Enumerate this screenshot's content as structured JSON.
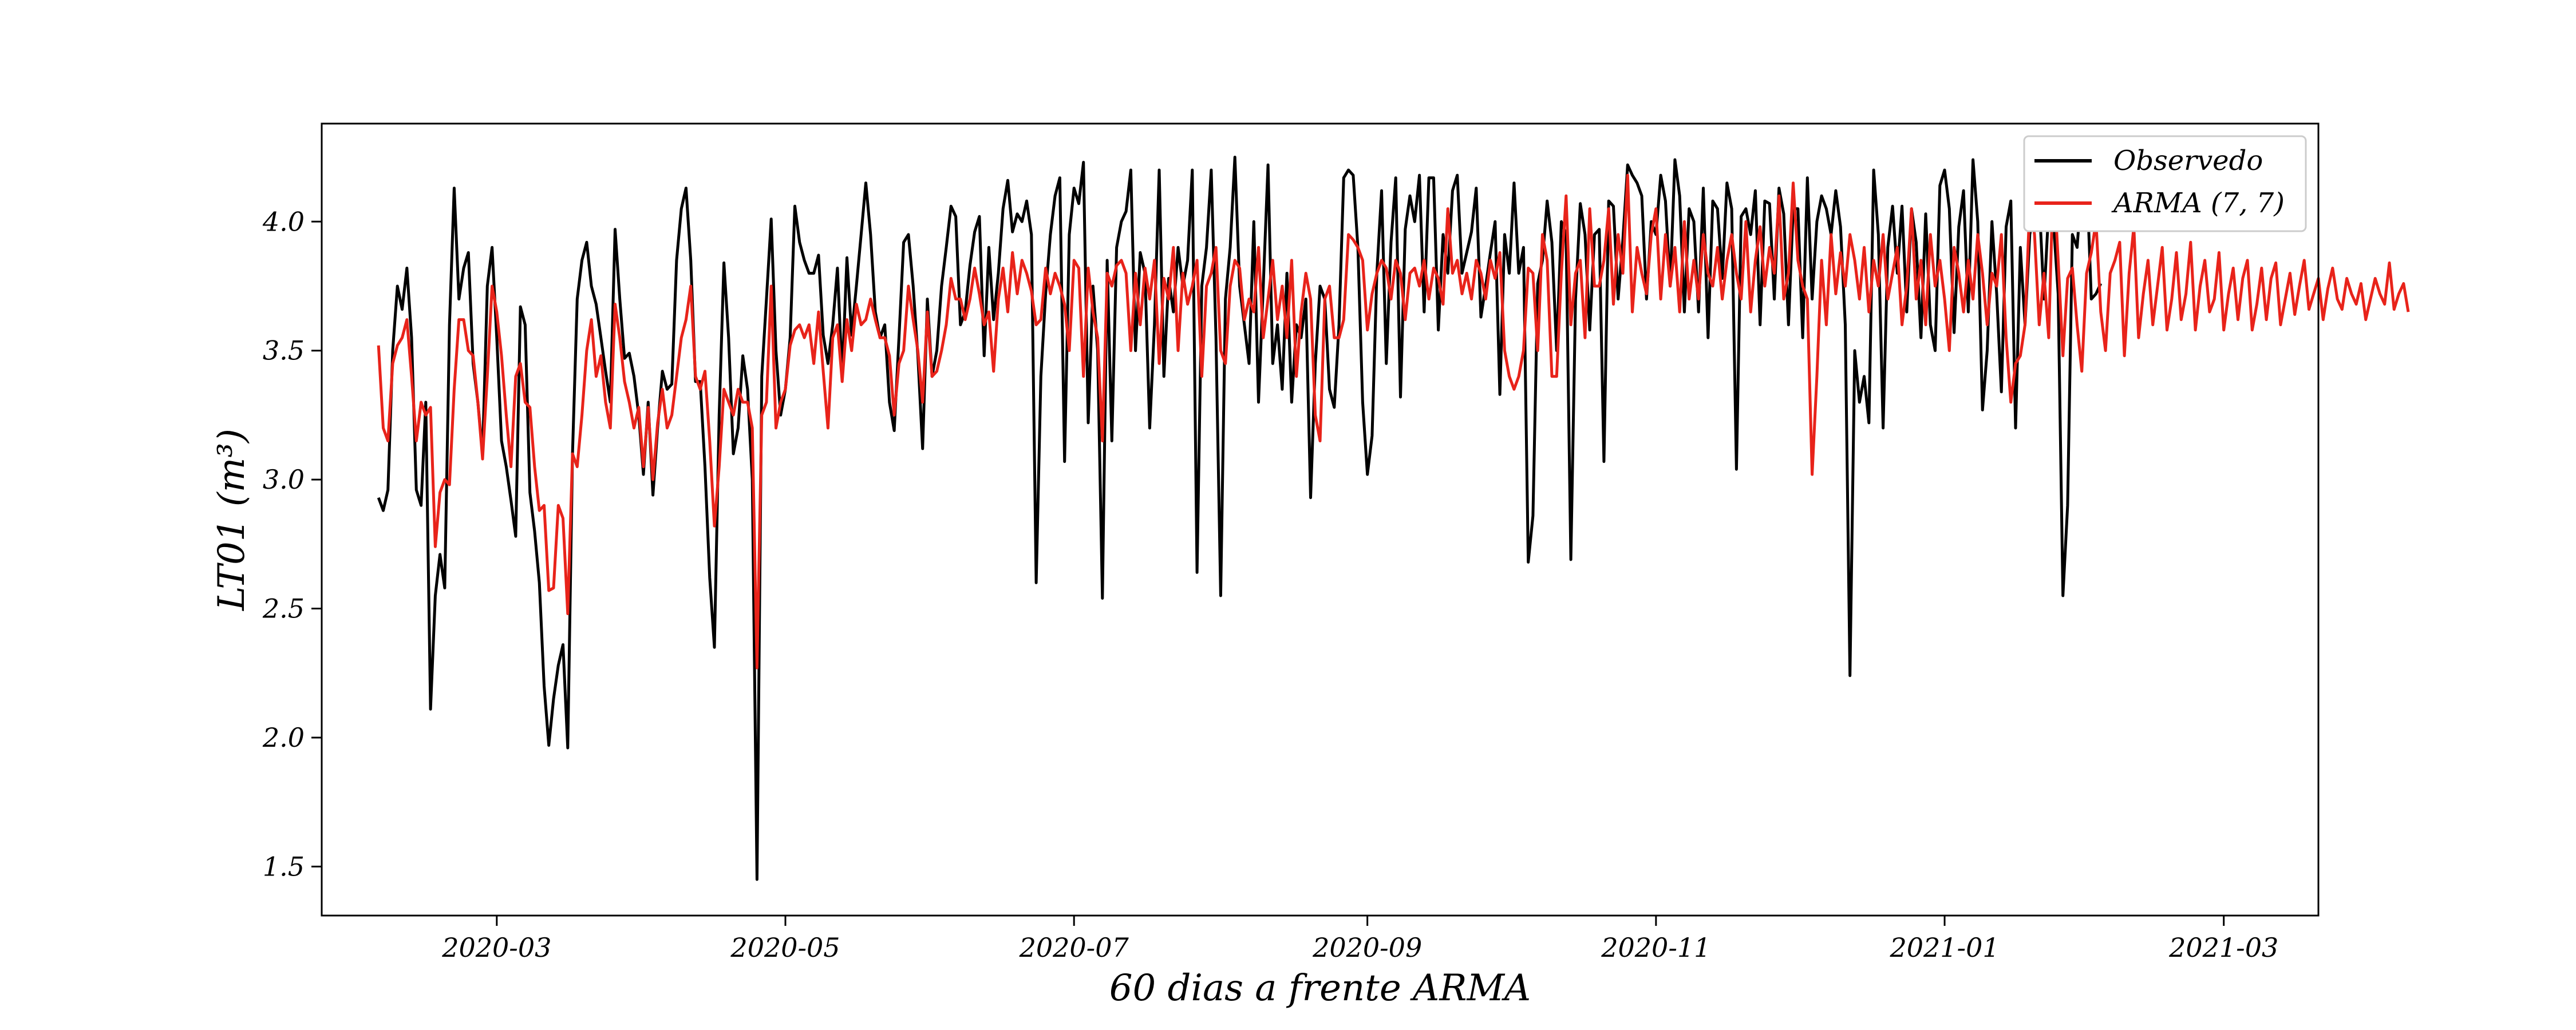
{
  "chart_data": {
    "type": "line",
    "xlabel": "60 dias a frente ARMA",
    "ylabel": "LT01 (m³)",
    "x_ticks": [
      "2020-03",
      "2020-05",
      "2020-07",
      "2020-09",
      "2020-11",
      "2021-01",
      "2021-03"
    ],
    "y_ticks": [
      "1.5",
      "2.0",
      "2.5",
      "3.0",
      "3.5",
      "4.0"
    ],
    "xlim": [
      "2020-01-24",
      "2021-03-21"
    ],
    "ylim": [
      1.31,
      4.38
    ],
    "grid": false,
    "legend_position": "top-right",
    "series": [
      {
        "name": "Observedo",
        "color": "#000000",
        "x_start": "2020-02-05",
        "x_step_days": 1,
        "values": [
          2.93,
          2.88,
          2.96,
          3.5,
          3.75,
          3.66,
          3.82,
          3.55,
          2.96,
          2.9,
          3.3,
          2.11,
          2.55,
          2.71,
          2.58,
          3.6,
          4.13,
          3.7,
          3.82,
          3.88,
          3.45,
          3.3,
          3.1,
          3.75,
          3.9,
          3.55,
          3.15,
          3.05,
          2.92,
          2.78,
          3.67,
          3.6,
          2.95,
          2.8,
          2.6,
          2.2,
          1.97,
          2.15,
          2.28,
          2.36,
          1.96,
          3.1,
          3.7,
          3.85,
          3.92,
          3.75,
          3.68,
          3.55,
          3.42,
          3.3,
          3.97,
          3.7,
          3.47,
          3.49,
          3.4,
          3.25,
          3.02,
          3.3,
          2.94,
          3.2,
          3.42,
          3.35,
          3.37,
          3.85,
          4.05,
          4.13,
          3.85,
          3.38,
          3.38,
          3.05,
          2.62,
          2.35,
          3.25,
          3.84,
          3.55,
          3.1,
          3.2,
          3.48,
          3.35,
          3.0,
          1.45,
          3.4,
          3.7,
          4.01,
          3.5,
          3.25,
          3.35,
          3.55,
          4.06,
          3.92,
          3.85,
          3.8,
          3.8,
          3.87,
          3.56,
          3.45,
          3.6,
          3.82,
          3.4,
          3.86,
          3.56,
          3.75,
          3.95,
          4.15,
          3.95,
          3.65,
          3.55,
          3.6,
          3.3,
          3.19,
          3.55,
          3.92,
          3.95,
          3.75,
          3.48,
          3.12,
          3.7,
          3.4,
          3.5,
          3.75,
          3.9,
          4.06,
          4.02,
          3.6,
          3.65,
          3.83,
          3.96,
          4.02,
          3.48,
          3.9,
          3.62,
          3.8,
          4.05,
          4.16,
          3.96,
          4.03,
          4.0,
          4.08,
          3.95,
          2.6,
          3.4,
          3.72,
          3.95,
          4.1,
          4.17,
          3.07,
          3.95,
          4.13,
          4.07,
          4.23,
          3.22,
          3.75,
          3.5,
          2.54,
          3.85,
          3.15,
          3.9,
          4.0,
          4.04,
          4.2,
          3.5,
          3.88,
          3.8,
          3.2,
          3.6,
          4.2,
          3.4,
          3.78,
          3.65,
          3.9,
          3.75,
          3.85,
          4.2,
          2.64,
          3.75,
          3.9,
          4.2,
          3.55,
          2.55,
          3.7,
          3.9,
          4.25,
          3.75,
          3.6,
          3.45,
          4.0,
          3.3,
          3.75,
          4.22,
          3.45,
          3.6,
          3.35,
          3.8,
          3.3,
          3.6,
          3.55,
          3.7,
          2.93,
          3.45,
          3.75,
          3.7,
          3.35,
          3.28,
          3.6,
          4.17,
          4.2,
          4.18,
          3.9,
          3.3,
          3.02,
          3.17,
          3.8,
          4.12,
          3.45,
          3.92,
          4.17,
          3.32,
          3.97,
          4.1,
          4.0,
          4.18,
          3.65,
          4.17,
          4.17,
          3.58,
          3.95,
          3.8,
          4.12,
          4.18,
          3.8,
          3.88,
          3.96,
          4.13,
          3.63,
          3.75,
          3.88,
          4.0,
          3.33,
          3.95,
          3.8,
          4.15,
          3.8,
          3.9,
          2.68,
          2.86,
          3.76,
          3.85,
          4.08,
          3.92,
          3.5,
          4.0,
          3.95,
          2.69,
          3.7,
          4.07,
          3.95,
          3.58,
          3.95,
          3.97,
          3.07,
          4.08,
          4.06,
          3.7,
          3.93,
          4.22,
          4.18,
          4.15,
          4.1,
          3.7,
          4.0,
          3.95,
          4.18,
          4.08,
          3.75,
          4.24,
          4.1,
          3.65,
          4.05,
          4.0,
          3.65,
          4.13,
          3.55,
          4.08,
          4.05,
          3.78,
          4.15,
          4.05,
          3.04,
          4.02,
          4.05,
          3.95,
          4.12,
          3.6,
          4.08,
          4.07,
          3.7,
          4.13,
          4.03,
          3.6,
          4.05,
          4.05,
          3.55,
          4.17,
          3.7,
          4.0,
          4.1,
          4.05,
          3.95,
          4.12,
          3.98,
          3.6,
          2.24,
          3.5,
          3.3,
          3.4,
          3.22,
          4.2,
          3.95,
          3.2,
          3.9,
          4.06,
          3.8,
          4.06,
          3.65,
          4.05,
          3.92,
          3.55,
          4.03,
          3.6,
          3.5,
          4.14,
          4.2,
          4.05,
          3.57,
          3.98,
          4.12,
          3.65,
          4.24,
          4.0,
          3.27,
          3.5,
          4.0,
          3.72,
          3.34,
          3.98,
          4.08,
          3.2,
          3.9,
          3.6,
          3.95,
          4.05,
          4.08,
          3.7,
          4.05,
          4.0,
          3.72,
          2.55,
          2.9,
          3.95,
          3.9,
          4.15,
          4.19,
          3.7,
          3.72,
          3.76
        ]
      },
      {
        "name": "ARMA (7, 7)",
        "color": "#e8231a",
        "x_start": "2020-02-05",
        "x_step_days": 1,
        "values": [
          3.52,
          3.2,
          3.15,
          3.45,
          3.52,
          3.55,
          3.62,
          3.4,
          3.15,
          3.3,
          3.25,
          3.28,
          2.74,
          2.95,
          3.0,
          2.98,
          3.35,
          3.62,
          3.62,
          3.5,
          3.48,
          3.3,
          3.08,
          3.4,
          3.75,
          3.65,
          3.48,
          3.25,
          3.05,
          3.4,
          3.45,
          3.3,
          3.28,
          3.05,
          2.88,
          2.9,
          2.57,
          2.58,
          2.9,
          2.85,
          2.48,
          3.1,
          3.05,
          3.25,
          3.5,
          3.62,
          3.4,
          3.48,
          3.3,
          3.2,
          3.68,
          3.55,
          3.38,
          3.3,
          3.2,
          3.28,
          3.05,
          3.28,
          3.0,
          3.22,
          3.35,
          3.2,
          3.25,
          3.4,
          3.55,
          3.62,
          3.75,
          3.4,
          3.35,
          3.42,
          3.15,
          2.82,
          3.05,
          3.35,
          3.3,
          3.25,
          3.35,
          3.3,
          3.3,
          3.2,
          2.27,
          3.25,
          3.3,
          3.75,
          3.2,
          3.3,
          3.35,
          3.52,
          3.58,
          3.6,
          3.55,
          3.6,
          3.45,
          3.65,
          3.42,
          3.2,
          3.55,
          3.6,
          3.38,
          3.62,
          3.5,
          3.68,
          3.6,
          3.62,
          3.7,
          3.62,
          3.55,
          3.55,
          3.48,
          3.25,
          3.45,
          3.5,
          3.75,
          3.62,
          3.5,
          3.3,
          3.65,
          3.4,
          3.42,
          3.5,
          3.6,
          3.78,
          3.7,
          3.7,
          3.62,
          3.7,
          3.82,
          3.72,
          3.6,
          3.65,
          3.42,
          3.7,
          3.82,
          3.65,
          3.88,
          3.72,
          3.85,
          3.8,
          3.73,
          3.6,
          3.62,
          3.82,
          3.72,
          3.8,
          3.75,
          3.68,
          3.5,
          3.85,
          3.82,
          3.4,
          3.82,
          3.65,
          3.55,
          3.15,
          3.8,
          3.75,
          3.83,
          3.85,
          3.8,
          3.5,
          3.8,
          3.6,
          3.82,
          3.7,
          3.85,
          3.45,
          3.78,
          3.7,
          3.9,
          3.5,
          3.8,
          3.68,
          3.75,
          3.85,
          3.4,
          3.75,
          3.8,
          3.9,
          3.5,
          3.45,
          3.75,
          3.85,
          3.82,
          3.62,
          3.7,
          3.65,
          3.9,
          3.55,
          3.7,
          3.85,
          3.62,
          3.75,
          3.55,
          3.85,
          3.4,
          3.65,
          3.8,
          3.7,
          3.25,
          3.15,
          3.7,
          3.75,
          3.55,
          3.55,
          3.62,
          3.95,
          3.93,
          3.9,
          3.85,
          3.58,
          3.72,
          3.8,
          3.85,
          3.82,
          3.7,
          3.85,
          3.8,
          3.62,
          3.8,
          3.82,
          3.75,
          3.85,
          3.7,
          3.82,
          3.78,
          3.68,
          4.05,
          3.8,
          3.85,
          3.72,
          3.8,
          3.7,
          3.85,
          3.8,
          3.7,
          3.85,
          3.78,
          3.88,
          3.5,
          3.4,
          3.35,
          3.4,
          3.5,
          3.82,
          3.8,
          3.5,
          3.95,
          3.85,
          3.4,
          3.4,
          3.8,
          4.1,
          3.6,
          3.8,
          3.85,
          3.55,
          4.05,
          3.75,
          3.75,
          3.85,
          4.05,
          3.68,
          3.95,
          3.8,
          4.18,
          3.65,
          3.9,
          3.8,
          3.72,
          3.95,
          4.05,
          3.7,
          3.95,
          3.75,
          3.9,
          3.65,
          4.0,
          3.7,
          3.85,
          3.7,
          3.95,
          3.8,
          3.75,
          3.9,
          3.7,
          3.85,
          3.95,
          3.8,
          3.7,
          4.0,
          3.65,
          3.85,
          3.98,
          3.75,
          3.9,
          3.8,
          4.1,
          3.7,
          3.8,
          4.15,
          3.85,
          3.75,
          3.7,
          3.02,
          3.4,
          3.85,
          3.6,
          3.95,
          3.72,
          3.88,
          3.75,
          3.95,
          3.85,
          3.7,
          3.9,
          3.65,
          3.85,
          3.75,
          3.95,
          3.7,
          3.8,
          3.9,
          3.6,
          3.75,
          4.05,
          3.7,
          3.85,
          3.6,
          3.95,
          3.75,
          3.85,
          3.7,
          3.5,
          3.9,
          3.8,
          3.65,
          3.85,
          3.7,
          3.95,
          3.8,
          3.6,
          3.8,
          3.75,
          3.95,
          3.55,
          3.3,
          3.45,
          3.48,
          3.6,
          4.07,
          3.95,
          3.6,
          3.8,
          3.55,
          4.2,
          3.85,
          3.48,
          3.78,
          3.82,
          3.6,
          3.42,
          3.8,
          3.88,
          4.0,
          3.65,
          3.5,
          3.8,
          3.85,
          3.92,
          3.48,
          3.8,
          3.98,
          3.55,
          3.72,
          3.85,
          3.6,
          3.75,
          3.9,
          3.58,
          3.7,
          3.88,
          3.62,
          3.72,
          3.92,
          3.58,
          3.75,
          3.85,
          3.65,
          3.7,
          3.88,
          3.58,
          3.72,
          3.82,
          3.62,
          3.78,
          3.85,
          3.58,
          3.68,
          3.82,
          3.62,
          3.78,
          3.84,
          3.6,
          3.7,
          3.8,
          3.64,
          3.75,
          3.85,
          3.66,
          3.72,
          3.78,
          3.62,
          3.74,
          3.82,
          3.7,
          3.66,
          3.78,
          3.72,
          3.68,
          3.76,
          3.62,
          3.7,
          3.78,
          3.72,
          3.68,
          3.84,
          3.66,
          3.72,
          3.76,
          3.65
        ]
      }
    ]
  }
}
